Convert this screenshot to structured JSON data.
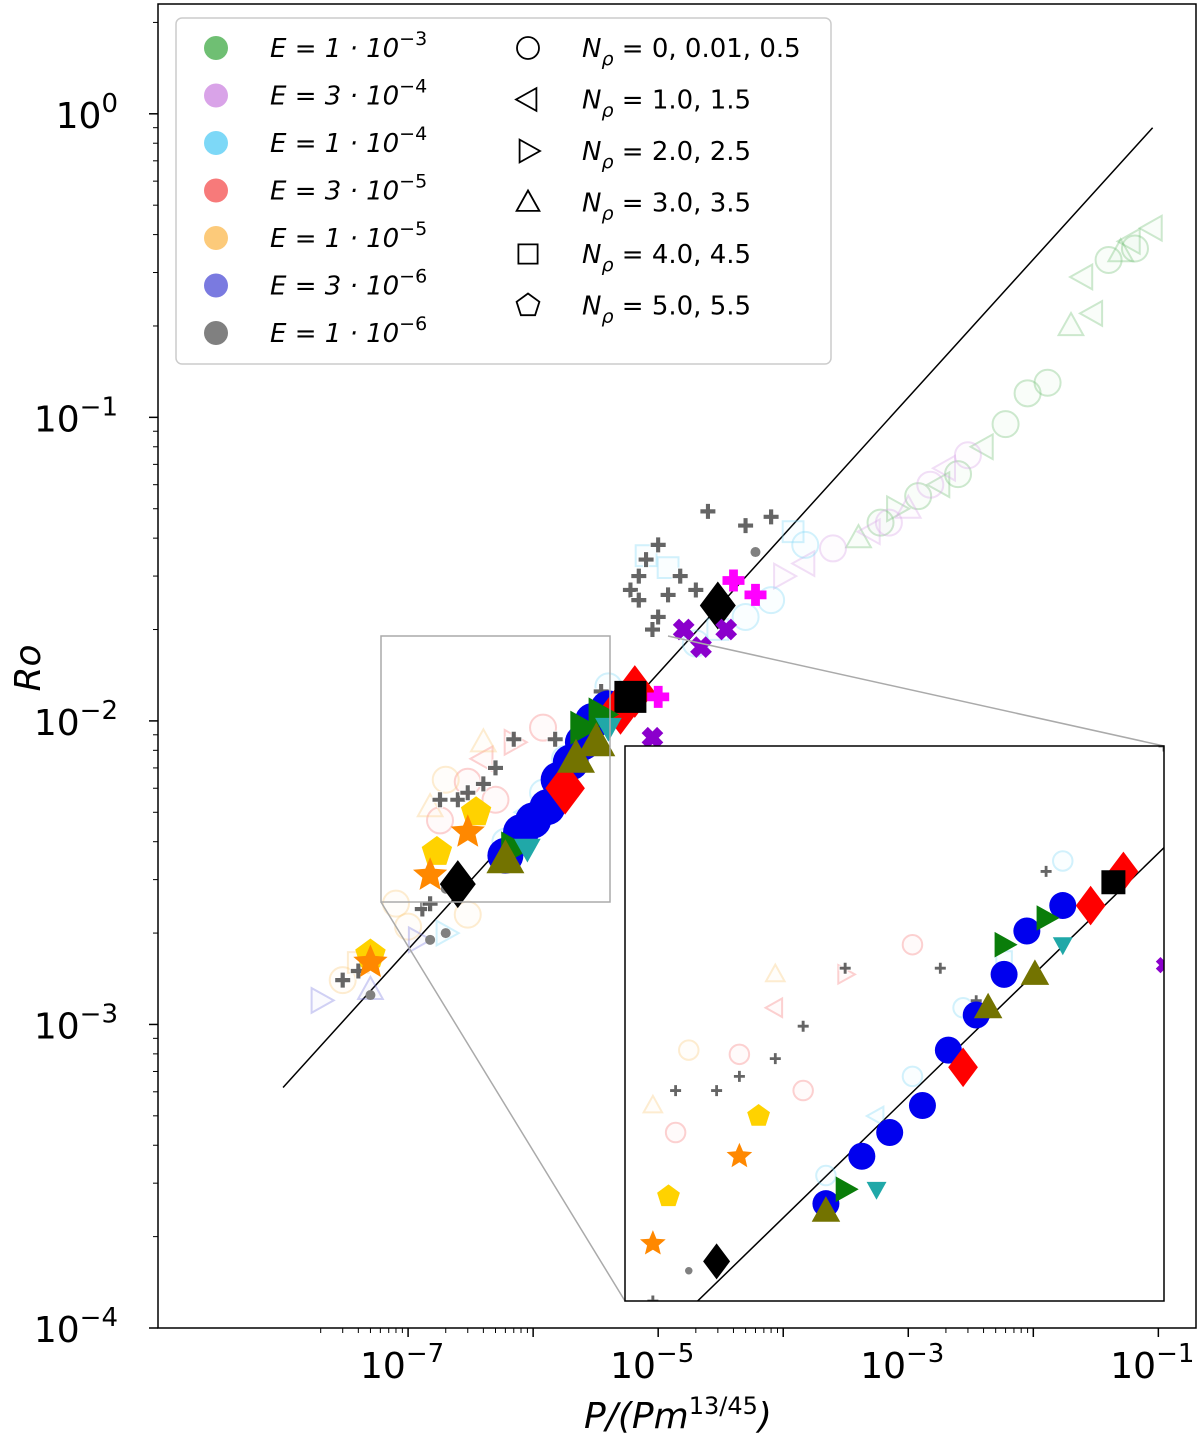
{
  "chart_data": {
    "type": "scatter",
    "xscale": "log",
    "yscale": "log",
    "xlabel": "P/(Pm^{13/45})",
    "ylabel": "Ro",
    "xlim": [
      1e-09,
      0.2
    ],
    "ylim": [
      0.0001,
      2.3
    ],
    "x_ticks": [
      {
        "value": 1e-07,
        "base": "10",
        "exp": "−7"
      },
      {
        "value": 1e-05,
        "base": "10",
        "exp": "−5"
      },
      {
        "value": 0.001,
        "base": "10",
        "exp": "−3"
      },
      {
        "value": 0.1,
        "base": "10",
        "exp": "−1"
      }
    ],
    "y_ticks": [
      {
        "value": 0.0001,
        "base": "10",
        "exp": "−4"
      },
      {
        "value": 0.001,
        "base": "10",
        "exp": "−3"
      },
      {
        "value": 0.01,
        "base": "10",
        "exp": "−2"
      },
      {
        "value": 0.1,
        "base": "10",
        "exp": "−1"
      },
      {
        "value": 1,
        "base": "10",
        "exp": "0"
      }
    ],
    "fit_line": {
      "x": [
        1e-08,
        0.09
      ],
      "y": [
        0.00062,
        0.9
      ]
    },
    "legend_E": [
      {
        "label": "E = 1 · 10",
        "exp": "−3",
        "color": "#6fbf73"
      },
      {
        "label": "E = 3 · 10",
        "exp": "−4",
        "color": "#d9a3e8"
      },
      {
        "label": "E = 1 · 10",
        "exp": "−4",
        "color": "#7dd8f7"
      },
      {
        "label": "E = 3 · 10",
        "exp": "−5",
        "color": "#f77a7a"
      },
      {
        "label": "E = 1 · 10",
        "exp": "−5",
        "color": "#fcca7a"
      },
      {
        "label": "E = 3 · 10",
        "exp": "−6",
        "color": "#7a7ae0"
      },
      {
        "label": "E = 1 · 10",
        "exp": "−6",
        "color": "#808080"
      }
    ],
    "legend_N": [
      {
        "symbol": "circle",
        "label": "N",
        "sub": "ρ",
        "values": " = 0, 0.01, 0.5"
      },
      {
        "symbol": "triangle-left",
        "label": "N",
        "sub": "ρ",
        "values": " = 1.0, 1.5"
      },
      {
        "symbol": "triangle-right",
        "label": "N",
        "sub": "ρ",
        "values": " = 2.0, 2.5"
      },
      {
        "symbol": "triangle-up",
        "label": "N",
        "sub": "ρ",
        "values": " = 3.0, 3.5"
      },
      {
        "symbol": "square",
        "label": "N",
        "sub": "ρ",
        "values": " = 4.0, 4.5"
      },
      {
        "symbol": "pentagon",
        "label": "N",
        "sub": "ρ",
        "values": " = 5.0, 5.5"
      }
    ],
    "inset": {
      "xlim": [
        1.2e-07,
        9e-06
      ],
      "ylim": [
        0.0025,
        0.02
      ]
    },
    "series": [
      {
        "name": "E=1e-3",
        "style": "open-faint",
        "color": "#6fbf73",
        "points": [
          [
            0.04,
            0.33,
            "circle"
          ],
          [
            0.05,
            0.35,
            "triangle-up"
          ],
          [
            0.06,
            0.38,
            "triangle-left"
          ],
          [
            0.065,
            0.36,
            "circle"
          ],
          [
            0.09,
            0.42,
            "triangle-left"
          ],
          [
            0.025,
            0.29,
            "triangle-left"
          ],
          [
            0.03,
            0.22,
            "triangle-left"
          ],
          [
            0.02,
            0.2,
            "triangle-up"
          ],
          [
            0.013,
            0.13,
            "circle"
          ],
          [
            0.009,
            0.12,
            "circle"
          ],
          [
            0.006,
            0.095,
            "circle"
          ],
          [
            0.004,
            0.08,
            "triangle-left"
          ],
          [
            0.0025,
            0.065,
            "circle"
          ],
          [
            0.0018,
            0.06,
            "triangle-left"
          ],
          [
            0.0012,
            0.055,
            "circle"
          ],
          [
            0.0008,
            0.05,
            "triangle-right"
          ],
          [
            0.0006,
            0.045,
            "circle"
          ],
          [
            0.0004,
            0.04,
            "triangle-up"
          ]
        ]
      },
      {
        "name": "E=3e-4",
        "style": "open-faint",
        "color": "#d9a3e8",
        "points": [
          [
            0.003,
            0.075,
            "circle"
          ],
          [
            0.002,
            0.068,
            "triangle-left"
          ],
          [
            0.0015,
            0.06,
            "circle"
          ],
          [
            0.001,
            0.05,
            "triangle-up"
          ],
          [
            0.0007,
            0.045,
            "circle"
          ],
          [
            0.0005,
            0.042,
            "triangle-left"
          ],
          [
            0.00025,
            0.037,
            "circle"
          ],
          [
            0.00015,
            0.033,
            "triangle-left"
          ],
          [
            0.0001,
            0.03,
            "triangle-right"
          ]
        ]
      },
      {
        "name": "E=1e-4",
        "style": "open-faint",
        "color": "#7dd8f7",
        "points": [
          [
            8e-05,
            0.025,
            "circle"
          ],
          [
            5e-05,
            0.022,
            "circle"
          ],
          [
            3e-05,
            0.02,
            "square"
          ],
          [
            2e-05,
            0.018,
            "circle"
          ],
          [
            1.2e-05,
            0.032,
            "square"
          ],
          [
            8e-06,
            0.035,
            "square"
          ],
          [
            4e-06,
            0.013,
            "circle"
          ],
          [
            2.5e-06,
            0.009,
            "square"
          ],
          [
            1.8e-06,
            0.0075,
            "circle"
          ],
          [
            1.2e-06,
            0.0058,
            "circle"
          ],
          [
            9e-07,
            0.005,
            "triangle-left"
          ],
          [
            6e-07,
            0.004,
            "circle"
          ],
          [
            2e-07,
            0.002,
            "triangle-right"
          ],
          [
            0.00015,
            0.038,
            "circle"
          ],
          [
            0.00012,
            0.042,
            "square"
          ]
        ]
      },
      {
        "name": "E=3e-5",
        "style": "open-faint",
        "color": "#f77a7a",
        "points": [
          [
            1.2e-06,
            0.0095,
            "circle"
          ],
          [
            7e-07,
            0.0085,
            "triangle-right"
          ],
          [
            4e-07,
            0.0075,
            "triangle-left"
          ],
          [
            3e-07,
            0.0063,
            "circle"
          ],
          [
            5e-07,
            0.0055,
            "circle"
          ],
          [
            1.8e-07,
            0.0047,
            "circle"
          ]
        ]
      },
      {
        "name": "E=1e-5",
        "style": "open-faint",
        "color": "#fcca7a",
        "points": [
          [
            4e-07,
            0.0085,
            "triangle-up"
          ],
          [
            2e-07,
            0.0064,
            "circle"
          ],
          [
            1.5e-07,
            0.0052,
            "triangle-up"
          ],
          [
            8e-08,
            0.0025,
            "circle"
          ],
          [
            3e-08,
            0.0014,
            "circle"
          ],
          [
            4e-08,
            0.0016,
            "square"
          ],
          [
            3e-07,
            0.0023,
            "circle"
          ],
          [
            1e-07,
            0.0021,
            "circle"
          ]
        ]
      },
      {
        "name": "E=3e-6",
        "style": "open-faint",
        "color": "#7a7ae0",
        "points": [
          [
            2e-08,
            0.0012,
            "triangle-right"
          ],
          [
            1.2e-07,
            0.0019,
            "triangle-right"
          ],
          [
            5e-08,
            0.0013,
            "triangle-up"
          ]
        ]
      },
      {
        "name": "E=1e-6",
        "style": "filled",
        "color": "#808080",
        "points": [
          [
            5e-08,
            0.00125,
            "circle"
          ],
          [
            2e-07,
            0.0028,
            "circle"
          ],
          [
            1.5e-07,
            0.0019,
            "circle"
          ],
          [
            2e-07,
            0.002,
            "circle"
          ],
          [
            6e-05,
            0.036,
            "circle"
          ]
        ]
      },
      {
        "name": "plus",
        "style": "plus",
        "color": "#555555",
        "points": [
          [
            3e-08,
            0.0014,
            "plus"
          ],
          [
            4e-08,
            0.0015,
            "plus"
          ],
          [
            1.3e-07,
            0.0024,
            "plus"
          ],
          [
            1.5e-07,
            0.0025,
            "plus"
          ],
          [
            1.8e-07,
            0.0055,
            "plus"
          ],
          [
            2.5e-07,
            0.0055,
            "plus"
          ],
          [
            3e-07,
            0.0058,
            "plus"
          ],
          [
            5e-07,
            0.007,
            "plus"
          ],
          [
            7e-07,
            0.0087,
            "plus"
          ],
          [
            4e-07,
            0.0062,
            "plus"
          ],
          [
            1.5e-06,
            0.0087,
            "plus"
          ],
          [
            2e-06,
            0.0077,
            "plus"
          ],
          [
            3.5e-06,
            0.0125,
            "plus"
          ],
          [
            6e-06,
            0.027,
            "plus"
          ],
          [
            7e-06,
            0.03,
            "plus"
          ],
          [
            8e-06,
            0.034,
            "plus"
          ],
          [
            1e-05,
            0.038,
            "plus"
          ],
          [
            1.2e-05,
            0.026,
            "plus"
          ],
          [
            1e-05,
            0.022,
            "plus"
          ],
          [
            9e-06,
            0.02,
            "plus"
          ],
          [
            2e-05,
            0.027,
            "plus"
          ],
          [
            2.5e-05,
            0.049,
            "plus"
          ],
          [
            5e-05,
            0.044,
            "plus"
          ],
          [
            8e-05,
            0.047,
            "plus"
          ],
          [
            1.5e-05,
            0.03,
            "plus"
          ],
          [
            7e-06,
            0.025,
            "plus"
          ]
        ]
      },
      {
        "name": "blue",
        "style": "filled",
        "color": "#0000ee",
        "points": [
          [
            6e-07,
            0.0036,
            "circle"
          ],
          [
            8e-07,
            0.0043,
            "circle"
          ],
          [
            1e-06,
            0.0047,
            "circle"
          ],
          [
            1.3e-06,
            0.0052,
            "circle"
          ],
          [
            1.6e-06,
            0.0064,
            "circle"
          ],
          [
            2e-06,
            0.0073,
            "circle"
          ],
          [
            2.5e-06,
            0.0085,
            "circle"
          ],
          [
            3e-06,
            0.01,
            "circle"
          ],
          [
            4e-06,
            0.011,
            "circle"
          ]
        ]
      },
      {
        "name": "red",
        "style": "filled",
        "color": "#ff0000",
        "points": [
          [
            1.8e-06,
            0.006,
            "diamond"
          ],
          [
            5e-06,
            0.011,
            "diamond"
          ],
          [
            6.5e-06,
            0.0125,
            "diamond"
          ]
        ]
      },
      {
        "name": "black",
        "style": "filled",
        "color": "#000000",
        "points": [
          [
            2.5e-07,
            0.0029,
            "diamond"
          ],
          [
            3e-05,
            0.024,
            "diamond"
          ],
          [
            6e-06,
            0.012,
            "square"
          ]
        ]
      },
      {
        "name": "green",
        "style": "filled",
        "color": "#0a7d0a",
        "points": [
          [
            7e-07,
            0.0038,
            "triangle-right"
          ],
          [
            2.5e-06,
            0.0095,
            "triangle-right"
          ],
          [
            3.5e-06,
            0.0105,
            "triangle-right"
          ]
        ]
      },
      {
        "name": "olive",
        "style": "filled",
        "color": "#737300",
        "points": [
          [
            6e-07,
            0.0035,
            "triangle-up"
          ],
          [
            3.2e-06,
            0.0085,
            "triangle-up"
          ],
          [
            2.2e-06,
            0.0075,
            "triangle-up"
          ]
        ]
      },
      {
        "name": "teal",
        "style": "filled",
        "color": "#20a8a8",
        "points": [
          [
            9e-07,
            0.0038,
            "triangle-down"
          ],
          [
            4e-06,
            0.0095,
            "triangle-down"
          ]
        ]
      },
      {
        "name": "gold",
        "style": "filled",
        "color": "#ffd200",
        "points": [
          [
            3.5e-07,
            0.005,
            "pentagon"
          ],
          [
            1.7e-07,
            0.0037,
            "pentagon"
          ],
          [
            5e-08,
            0.0017,
            "pentagon"
          ]
        ]
      },
      {
        "name": "orange",
        "style": "filled",
        "color": "#ff8800",
        "points": [
          [
            3e-07,
            0.0043,
            "star"
          ],
          [
            1.5e-07,
            0.0031,
            "star"
          ],
          [
            5e-08,
            0.0016,
            "star"
          ]
        ]
      },
      {
        "name": "magenta",
        "style": "filled",
        "color": "#ff00ff",
        "points": [
          [
            4e-05,
            0.029,
            "plus-bold"
          ],
          [
            6e-05,
            0.026,
            "plus-bold"
          ],
          [
            1e-05,
            0.012,
            "plus-bold"
          ]
        ]
      },
      {
        "name": "purple",
        "style": "filled",
        "color": "#8b00cc",
        "points": [
          [
            2.2e-05,
            0.0175,
            "x-bold"
          ],
          [
            1.6e-05,
            0.02,
            "x-bold"
          ],
          [
            3.5e-05,
            0.02,
            "x-bold"
          ],
          [
            9e-06,
            0.0088,
            "x-bold"
          ]
        ]
      }
    ]
  }
}
